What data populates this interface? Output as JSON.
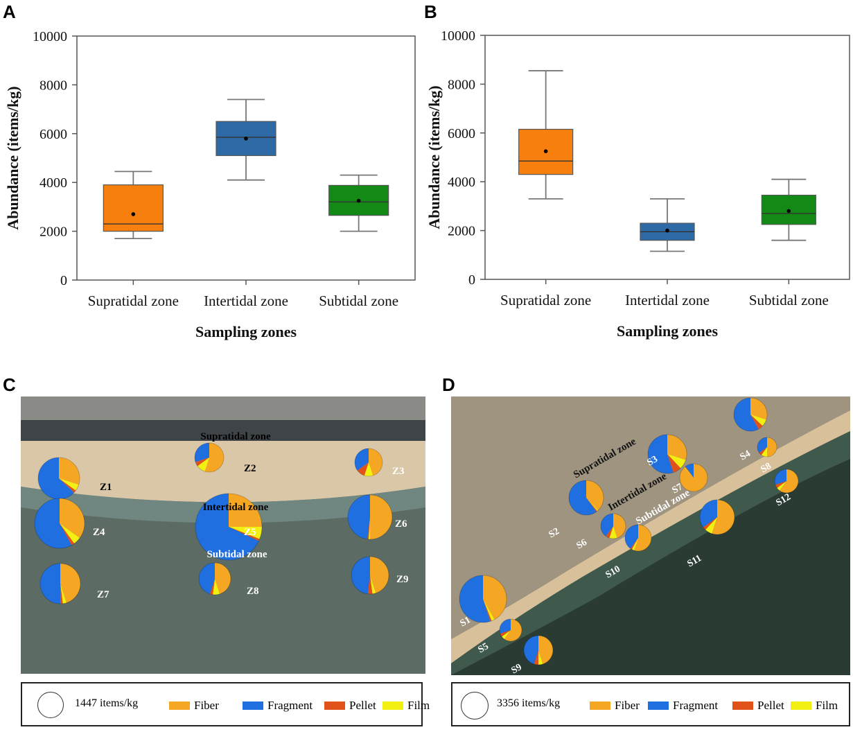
{
  "panels": {
    "A": "A",
    "B": "B",
    "C": "C",
    "D": "D"
  },
  "colors": {
    "supratidal": "#f77f0e",
    "intertidal": "#2e6aa6",
    "subtidal": "#148a16",
    "fiber": "#f5a623",
    "fragment": "#1f6fe0",
    "pellet": "#e0521a",
    "film": "#f2ef12"
  },
  "chart_data": [
    {
      "type": "box",
      "panel": "A",
      "xlabel": "Sampling zones",
      "ylabel": "Abundance (items/kg)",
      "ylim": [
        0,
        10000
      ],
      "yticks": [
        "0",
        "2000",
        "4000",
        "6000",
        "8000",
        "10000"
      ],
      "categories": [
        "Supratidal zone",
        "Intertidal zone",
        "Subtidal zone"
      ],
      "boxes": [
        {
          "min": 1700,
          "q1": 2000,
          "median": 2300,
          "q3": 3900,
          "max": 4450,
          "mean": 2700
        },
        {
          "min": 4100,
          "q1": 5100,
          "median": 5850,
          "q3": 6500,
          "max": 7400,
          "mean": 5800
        },
        {
          "min": 2000,
          "q1": 2650,
          "median": 3200,
          "q3": 3880,
          "max": 4300,
          "mean": 3250
        }
      ]
    },
    {
      "type": "box",
      "panel": "B",
      "xlabel": "Sampling zones",
      "ylabel": "Abundance (items/kg)",
      "ylim": [
        0,
        10000
      ],
      "yticks": [
        "0",
        "2000",
        "4000",
        "6000",
        "8000",
        "10000"
      ],
      "categories": [
        "Supratidal zone",
        "Intertidal zone",
        "Subtidal zone"
      ],
      "boxes": [
        {
          "min": 3300,
          "q1": 4300,
          "median": 4850,
          "q3": 6150,
          "max": 8550,
          "mean": 5250
        },
        {
          "min": 1150,
          "q1": 1600,
          "median": 1950,
          "q3": 2300,
          "max": 3300,
          "mean": 2000
        },
        {
          "min": 1600,
          "q1": 2250,
          "median": 2700,
          "q3": 3450,
          "max": 4100,
          "mean": 2800
        }
      ]
    },
    {
      "type": "pie-map",
      "panel": "C",
      "zone_labels": [
        "Supratidal zone",
        "Intertidal zone",
        "Subtidal zone"
      ],
      "sites": [
        {
          "label": "Z1",
          "fiber": 30,
          "fragment": 63,
          "pellet": 2,
          "film": 5
        },
        {
          "label": "Z2",
          "fiber": 55,
          "fragment": 30,
          "pellet": 5,
          "film": 10
        },
        {
          "label": "Z3",
          "fiber": 45,
          "fragment": 35,
          "pellet": 10,
          "film": 10
        },
        {
          "label": "Z4",
          "fiber": 35,
          "fragment": 58,
          "pellet": 2,
          "film": 5
        },
        {
          "label": "Z5",
          "fiber": 25,
          "fragment": 68,
          "pellet": 1,
          "film": 6
        },
        {
          "label": "Z6",
          "fiber": 50,
          "fragment": 48,
          "pellet": 1,
          "film": 1
        },
        {
          "label": "Z7",
          "fiber": 45,
          "fragment": 50,
          "pellet": 2,
          "film": 3
        },
        {
          "label": "Z8",
          "fiber": 45,
          "fragment": 45,
          "pellet": 3,
          "film": 7
        },
        {
          "label": "Z9",
          "fiber": 45,
          "fragment": 48,
          "pellet": 4,
          "film": 3
        }
      ],
      "legend": {
        "scale": "1447 items/kg",
        "items": [
          "Fiber",
          "Fragment",
          "Pellet",
          "Film"
        ]
      }
    },
    {
      "type": "pie-map",
      "panel": "D",
      "zone_labels": [
        "Supratidal zone",
        "Intertidal zone",
        "Subtidal zone"
      ],
      "sites": [
        {
          "label": "S1",
          "fiber": 42,
          "fragment": 55,
          "pellet": 1,
          "film": 2
        },
        {
          "label": "S2",
          "fiber": 38,
          "fragment": 60,
          "pellet": 1,
          "film": 1
        },
        {
          "label": "S3",
          "fiber": 30,
          "fragment": 55,
          "pellet": 7,
          "film": 8
        },
        {
          "label": "S4",
          "fiber": 30,
          "fragment": 58,
          "pellet": 5,
          "film": 7
        },
        {
          "label": "S5",
          "fiber": 60,
          "fragment": 30,
          "pellet": 5,
          "film": 5
        },
        {
          "label": "S6",
          "fiber": 45,
          "fragment": 40,
          "pellet": 5,
          "film": 10
        },
        {
          "label": "S7",
          "fiber": 88,
          "fragment": 10,
          "pellet": 1,
          "film": 1
        },
        {
          "label": "S8",
          "fiber": 50,
          "fragment": 35,
          "pellet": 5,
          "film": 10
        },
        {
          "label": "S9",
          "fiber": 45,
          "fragment": 45,
          "pellet": 5,
          "film": 5
        },
        {
          "label": "S10",
          "fiber": 55,
          "fragment": 40,
          "pellet": 2,
          "film": 3
        },
        {
          "label": "S11",
          "fiber": 55,
          "fragment": 35,
          "pellet": 3,
          "film": 7
        },
        {
          "label": "S12",
          "fiber": 60,
          "fragment": 30,
          "pellet": 5,
          "film": 5
        }
      ],
      "legend": {
        "scale": "3356 items/kg",
        "items": [
          "Fiber",
          "Fragment",
          "Pellet",
          "Film"
        ]
      }
    }
  ]
}
